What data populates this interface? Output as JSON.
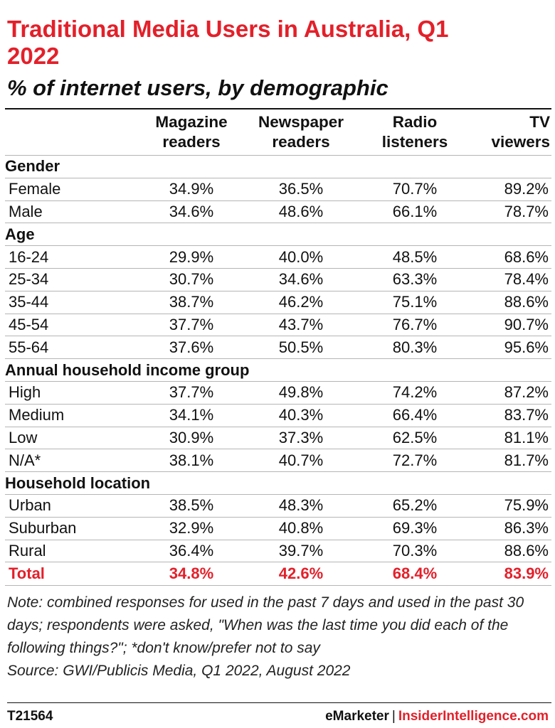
{
  "title": "Traditional Media Users in Australia, Q1 2022",
  "subtitle": "% of internet users, by demographic",
  "accent_color": "#e3202a",
  "chart_data": {
    "type": "table",
    "columns": [
      "Magazine readers",
      "Newspaper readers",
      "Radio listeners",
      "TV viewers"
    ],
    "sections": [
      {
        "label": "Gender",
        "rows": [
          {
            "label": "Female",
            "values": [
              "34.9%",
              "36.5%",
              "70.7%",
              "89.2%"
            ]
          },
          {
            "label": "Male",
            "values": [
              "34.6%",
              "48.6%",
              "66.1%",
              "78.7%"
            ]
          }
        ]
      },
      {
        "label": "Age",
        "rows": [
          {
            "label": "16-24",
            "values": [
              "29.9%",
              "40.0%",
              "48.5%",
              "68.6%"
            ]
          },
          {
            "label": "25-34",
            "values": [
              "30.7%",
              "34.6%",
              "63.3%",
              "78.4%"
            ]
          },
          {
            "label": "35-44",
            "values": [
              "38.7%",
              "46.2%",
              "75.1%",
              "88.6%"
            ]
          },
          {
            "label": "45-54",
            "values": [
              "37.7%",
              "43.7%",
              "76.7%",
              "90.7%"
            ]
          },
          {
            "label": "55-64",
            "values": [
              "37.6%",
              "50.5%",
              "80.3%",
              "95.6%"
            ]
          }
        ]
      },
      {
        "label": "Annual household income group",
        "rows": [
          {
            "label": "High",
            "values": [
              "37.7%",
              "49.8%",
              "74.2%",
              "87.2%"
            ]
          },
          {
            "label": "Medium",
            "values": [
              "34.1%",
              "40.3%",
              "66.4%",
              "83.7%"
            ]
          },
          {
            "label": "Low",
            "values": [
              "30.9%",
              "37.3%",
              "62.5%",
              "81.1%"
            ]
          },
          {
            "label": "N/A*",
            "values": [
              "38.1%",
              "40.7%",
              "72.7%",
              "81.7%"
            ]
          }
        ]
      },
      {
        "label": "Household location",
        "rows": [
          {
            "label": "Urban",
            "values": [
              "38.5%",
              "48.3%",
              "65.2%",
              "75.9%"
            ]
          },
          {
            "label": "Suburban",
            "values": [
              "32.9%",
              "40.8%",
              "69.3%",
              "86.3%"
            ]
          },
          {
            "label": "Rural",
            "values": [
              "36.4%",
              "39.7%",
              "70.3%",
              "88.6%"
            ]
          }
        ]
      }
    ],
    "total": {
      "label": "Total",
      "values": [
        "34.8%",
        "42.6%",
        "68.4%",
        "83.9%"
      ]
    }
  },
  "note": "Note: combined responses for used in the past 7 days and used in the past 30 days; respondents were asked, \"When was the last time you did each of the following things?\"; *don't know/prefer not to say",
  "source": "Source: GWI/Publicis Media, Q1 2022, August 2022",
  "footer": {
    "chart_id": "T21564",
    "brand_primary": "eMarketer",
    "brand_separator": "|",
    "brand_secondary": "InsiderIntelligence.com"
  }
}
